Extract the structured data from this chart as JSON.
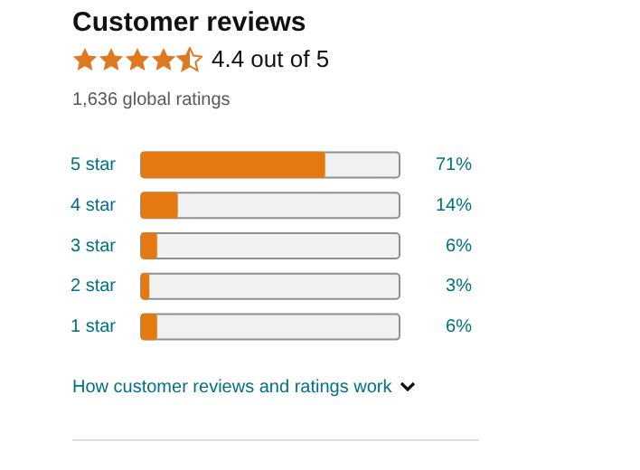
{
  "chart_data": {
    "type": "bar",
    "orientation": "horizontal",
    "title": "Customer reviews",
    "annotations": [
      "4.4 out of 5",
      "1,636 global ratings",
      "How customer reviews and ratings work"
    ],
    "categories": [
      "5 star",
      "4 star",
      "3 star",
      "2 star",
      "1 star"
    ],
    "values": [
      71,
      14,
      6,
      3,
      6
    ],
    "value_labels": [
      "71%",
      "14%",
      "6%",
      "3%",
      "6%"
    ],
    "color": "#e47911",
    "xlim": [
      0,
      100
    ],
    "tick_labels": "y",
    "legend": false
  }
}
